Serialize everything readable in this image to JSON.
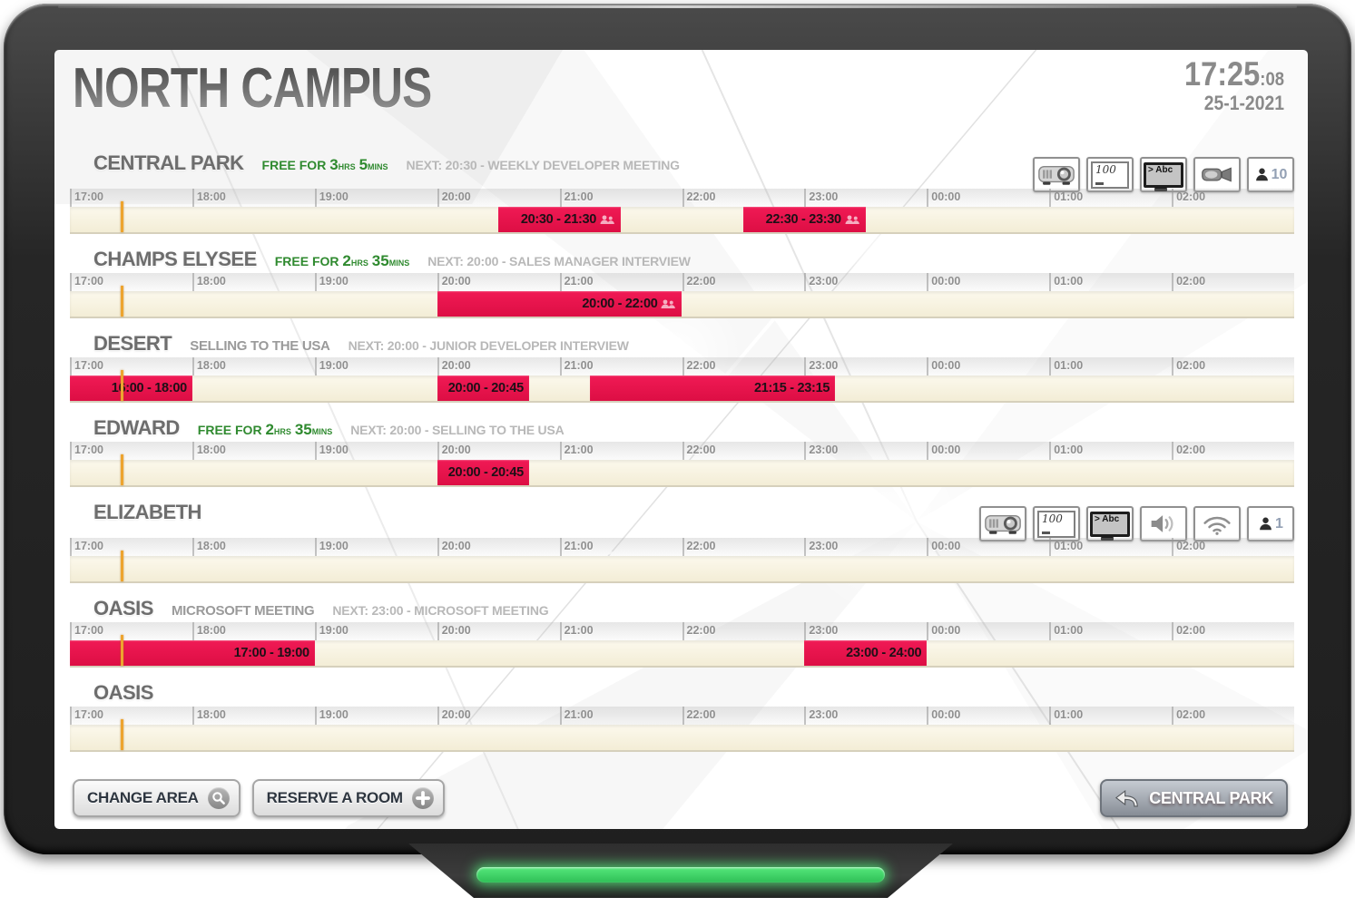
{
  "header": {
    "title": "NORTH CAMPUS",
    "time": "17:25",
    "seconds": ":08",
    "date": "25-1-2021"
  },
  "labels": {
    "free_for": "FREE FOR ",
    "hours_unit": "HRS",
    "mins_unit": "MINS"
  },
  "timeline": {
    "hour_labels": [
      "17:00",
      "18:00",
      "19:00",
      "20:00",
      "21:00",
      "22:00",
      "23:00",
      "00:00",
      "01:00",
      "02:00"
    ],
    "total_hours": 10,
    "current_time_offset_hours": 0.4167
  },
  "rooms": [
    {
      "name": "CENTRAL PARK",
      "status": {
        "free_hours": "3",
        "free_mins": "5"
      },
      "next": "NEXT: 20:30 - WEEKLY DEVELOPER MEETING",
      "amenities": [
        {
          "type": "projector"
        },
        {
          "type": "whiteboard",
          "value": "100"
        },
        {
          "type": "screen-text",
          "value": "> Abc"
        },
        {
          "type": "camera"
        },
        {
          "type": "capacity",
          "value": "10"
        }
      ],
      "bookings": [
        {
          "label": "20:30 - 21:30",
          "start": 3.5,
          "end": 4.5,
          "attendees_icon": true
        },
        {
          "label": "22:30 - 23:30",
          "start": 5.5,
          "end": 6.5,
          "attendees_icon": true
        }
      ]
    },
    {
      "name": "CHAMPS ELYSEE",
      "status": {
        "free_hours": "2",
        "free_mins": "35"
      },
      "next": "NEXT: 20:00 - SALES MANAGER INTERVIEW",
      "amenities": [],
      "bookings": [
        {
          "label": "20:00 - 22:00",
          "start": 3,
          "end": 5,
          "attendees_icon": true
        }
      ]
    },
    {
      "name": "DESERT",
      "status": {
        "current": "SELLING TO THE USA"
      },
      "next": "NEXT: 20:00 - JUNIOR DEVELOPER INTERVIEW",
      "amenities": [],
      "bookings": [
        {
          "label": "16:00 - 18:00",
          "start": 0,
          "end": 1,
          "attendees_icon": false
        },
        {
          "label": "20:00 - 20:45",
          "start": 3,
          "end": 3.75,
          "attendees_icon": false
        },
        {
          "label": "21:15 - 23:15",
          "start": 4.25,
          "end": 6.25,
          "attendees_icon": false
        }
      ]
    },
    {
      "name": "EDWARD",
      "status": {
        "free_hours": "2",
        "free_mins": "35"
      },
      "next": "NEXT: 20:00 - SELLING TO THE USA",
      "amenities": [],
      "bookings": [
        {
          "label": "20:00 - 20:45",
          "start": 3,
          "end": 3.75,
          "attendees_icon": false
        }
      ]
    },
    {
      "name": "ELIZABETH",
      "status": {},
      "next": "",
      "amenities": [
        {
          "type": "projector"
        },
        {
          "type": "whiteboard",
          "value": "100"
        },
        {
          "type": "screen-text",
          "value": "> Abc"
        },
        {
          "type": "speaker"
        },
        {
          "type": "wifi"
        },
        {
          "type": "capacity",
          "value": "1"
        }
      ],
      "bookings": []
    },
    {
      "name": "OASIS",
      "status": {
        "current": "MICROSOFT MEETING"
      },
      "next": "NEXT: 23:00 - MICROSOFT MEETING",
      "amenities": [],
      "bookings": [
        {
          "label": "17:00 - 19:00",
          "start": 0,
          "end": 2,
          "attendees_icon": false
        },
        {
          "label": "23:00 - 24:00",
          "start": 6,
          "end": 7,
          "attendees_icon": false
        }
      ]
    },
    {
      "name": "OASIS",
      "status": {},
      "next": "",
      "amenities": [],
      "bookings": []
    }
  ],
  "footer": {
    "change_area_label": "CHANGE AREA",
    "reserve_room_label": "RESERVE A ROOM",
    "back_button_label": "CENTRAL PARK"
  },
  "colors": {
    "booking_red": "#e5134b",
    "free_green": "#2f8a2f",
    "current_time_marker": "#eda42f",
    "led_green": "#55e87b"
  }
}
